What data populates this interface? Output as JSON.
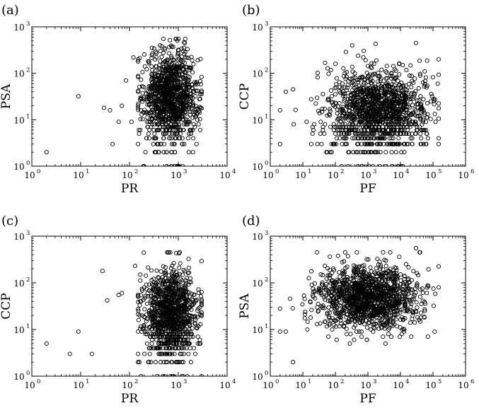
{
  "panels": [
    {
      "tag": "(a)",
      "xlabel": "PR",
      "ylabel": "PSA"
    },
    {
      "tag": "(b)",
      "xlabel": "PF",
      "ylabel": "CCP"
    },
    {
      "tag": "(c)",
      "xlabel": "PR",
      "ylabel": "CCP"
    },
    {
      "tag": "(d)",
      "xlabel": "PF",
      "ylabel": "PSA"
    }
  ],
  "chart_data": [
    {
      "type": "scatter",
      "panel": "(a)",
      "xlabel": "PR",
      "ylabel": "PSA",
      "xscale": "log",
      "yscale": "log",
      "xlim": [
        1,
        10000
      ],
      "ylim": [
        1,
        1000
      ],
      "xticks": [
        {
          "e": "0"
        },
        {
          "e": "1"
        },
        {
          "e": "2"
        },
        {
          "e": "3"
        },
        {
          "e": "4"
        }
      ],
      "yticks": [
        {
          "e": "0"
        },
        {
          "e": "1"
        },
        {
          "e": "2"
        },
        {
          "e": "3"
        }
      ],
      "marker": "open circle",
      "points_outliers": [
        [
          2,
          2
        ],
        [
          9,
          32
        ],
        [
          30,
          18
        ],
        [
          40,
          16
        ],
        [
          45,
          3
        ],
        [
          60,
          9
        ],
        [
          70,
          20
        ],
        [
          85,
          70
        ],
        [
          110,
          9
        ],
        [
          120,
          220
        ],
        [
          150,
          180
        ]
      ],
      "cluster": {
        "x_center": 700,
        "x_spread_decades": 0.28,
        "y_center": 30,
        "y_spread_decades": 0.5,
        "x_range": [
          150,
          3000
        ],
        "y_range": [
          1,
          550
        ],
        "n": 1100
      }
    },
    {
      "type": "scatter",
      "panel": "(b)",
      "xlabel": "PF",
      "ylabel": "CCP",
      "xscale": "log",
      "yscale": "log",
      "xlim": [
        1,
        1000000
      ],
      "ylim": [
        1,
        1000
      ],
      "xticks": [
        {
          "e": "0"
        },
        {
          "e": "1"
        },
        {
          "e": "2"
        },
        {
          "e": "3"
        },
        {
          "e": "4"
        },
        {
          "e": "5"
        },
        {
          "e": "6"
        }
      ],
      "yticks": [
        {
          "e": "0"
        },
        {
          "e": "1"
        },
        {
          "e": "2"
        },
        {
          "e": "3"
        }
      ],
      "marker": "open circle",
      "points_outliers": [
        [
          2,
          3
        ],
        [
          2,
          16
        ],
        [
          3,
          40
        ],
        [
          5,
          45
        ],
        [
          150000,
          200
        ],
        [
          30000,
          450
        ],
        [
          500,
          240
        ]
      ],
      "cluster": {
        "x_center": 2000,
        "x_spread_decades": 0.75,
        "y_center": 15,
        "y_spread_decades": 0.45,
        "x_range": [
          2,
          150000
        ],
        "y_range": [
          1,
          450
        ],
        "n": 1300
      }
    },
    {
      "type": "scatter",
      "panel": "(c)",
      "xlabel": "PR",
      "ylabel": "CCP",
      "xscale": "log",
      "yscale": "log",
      "xlim": [
        1,
        10000
      ],
      "ylim": [
        1,
        1000
      ],
      "xticks": [
        {
          "e": "0"
        },
        {
          "e": "1"
        },
        {
          "e": "2"
        },
        {
          "e": "3"
        },
        {
          "e": "4"
        }
      ],
      "yticks": [
        {
          "e": "0"
        },
        {
          "e": "1"
        },
        {
          "e": "2"
        },
        {
          "e": "3"
        }
      ],
      "marker": "open circle",
      "points_outliers": [
        [
          2,
          5
        ],
        [
          6,
          3
        ],
        [
          9,
          9
        ],
        [
          17,
          3
        ],
        [
          28,
          180
        ],
        [
          35,
          42
        ],
        [
          60,
          55
        ],
        [
          70,
          60
        ],
        [
          130,
          230
        ],
        [
          160,
          2
        ]
      ],
      "cluster": {
        "x_center": 700,
        "x_spread_decades": 0.28,
        "y_center": 20,
        "y_spread_decades": 0.5,
        "x_range": [
          150,
          3000
        ],
        "y_range": [
          1,
          450
        ],
        "n": 1100
      }
    },
    {
      "type": "scatter",
      "panel": "(d)",
      "xlabel": "PF",
      "ylabel": "PSA",
      "xscale": "log",
      "yscale": "log",
      "xlim": [
        1,
        1000000
      ],
      "ylim": [
        1,
        1000
      ],
      "xticks": [
        {
          "e": "0"
        },
        {
          "e": "1"
        },
        {
          "e": "2"
        },
        {
          "e": "3"
        },
        {
          "e": "4"
        },
        {
          "e": "5"
        },
        {
          "e": "6"
        }
      ],
      "yticks": [
        {
          "e": "0"
        },
        {
          "e": "1"
        },
        {
          "e": "2"
        },
        {
          "e": "3"
        }
      ],
      "marker": "open circle",
      "points_outliers": [
        [
          2,
          9
        ],
        [
          3,
          9
        ],
        [
          5,
          2
        ],
        [
          30000,
          550
        ],
        [
          40000,
          450
        ],
        [
          150000,
          80
        ],
        [
          2,
          28
        ]
      ],
      "cluster": {
        "x_center": 1000,
        "x_spread_decades": 0.75,
        "y_center": 50,
        "y_spread_decades": 0.35,
        "x_range": [
          2,
          150000
        ],
        "y_range": [
          1,
          450
        ],
        "n": 1300
      }
    }
  ]
}
